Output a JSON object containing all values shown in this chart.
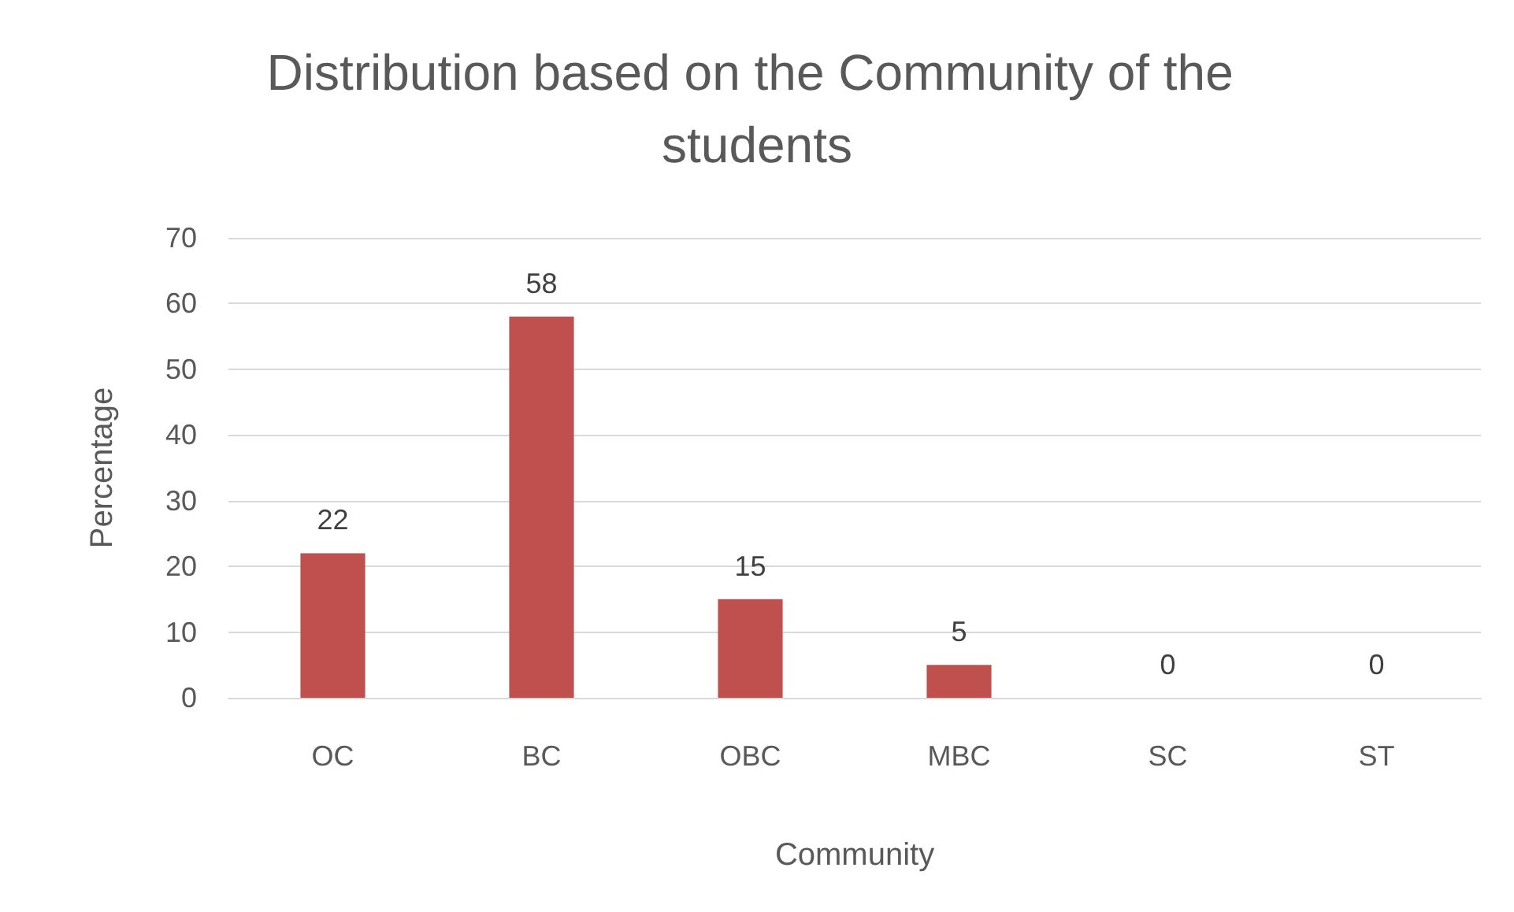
{
  "chart_data": {
    "type": "bar",
    "title": "Distribution based on the Community of the students",
    "xlabel": "Community",
    "ylabel": "Percentage",
    "categories": [
      "OC",
      "BC",
      "OBC",
      "MBC",
      "SC",
      "ST"
    ],
    "series": [
      {
        "color": "#c0504d",
        "values": [
          22,
          58,
          15,
          5,
          0,
          0
        ]
      }
    ],
    "ylim": [
      0,
      70
    ],
    "yticks": [
      0,
      10,
      20,
      30,
      40,
      50,
      60,
      70
    ],
    "grid": "y",
    "data_labels": true
  }
}
